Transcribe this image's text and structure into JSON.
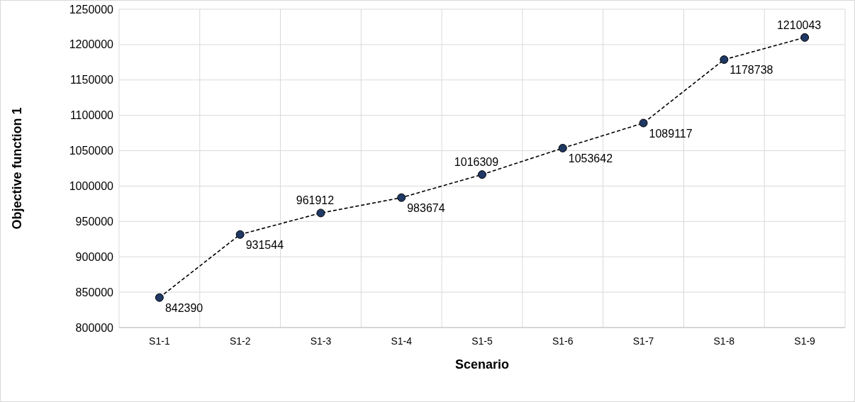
{
  "chart_data": {
    "type": "line",
    "xlabel": "Scenario",
    "ylabel": "Objective function 1",
    "categories": [
      "S1-1",
      "S1-2",
      "S1-3",
      "S1-4",
      "S1-5",
      "S1-6",
      "S1-7",
      "S1-8",
      "S1-9"
    ],
    "series": [
      {
        "color": "#1f3864",
        "values": [
          842390,
          931544,
          961912,
          983674,
          1016309,
          1053642,
          1089117,
          1178738,
          1210043
        ]
      }
    ],
    "ylim": [
      800000,
      1250000
    ],
    "yticks": [
      800000,
      850000,
      900000,
      950000,
      1000000,
      1050000,
      1100000,
      1150000,
      1200000,
      1250000
    ],
    "grid": true,
    "marker": "circle",
    "line_style": "dashed",
    "data_labels": true
  }
}
